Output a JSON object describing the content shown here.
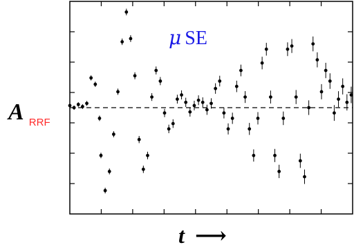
{
  "chart_data": {
    "type": "scatter",
    "title": "",
    "annotation": {
      "symbol": "μ",
      "text": "SE",
      "color": "#1a1ae6"
    },
    "ylabel": {
      "main": "A",
      "subscript": "RRF",
      "subscript_color": "#ff2a2a"
    },
    "xlabel": {
      "main": "t",
      "arrow": "⟶"
    },
    "xlim": [
      0,
      100
    ],
    "ylim": [
      -1,
      1
    ],
    "grid": false,
    "legend": "none",
    "baseline": 0,
    "series": [
      {
        "x": [
          0,
          1.5,
          3,
          4.5,
          6,
          7.5,
          9,
          10.5,
          11,
          12.5,
          14,
          15.5,
          17,
          18.5,
          20,
          21.5,
          23,
          24.5,
          26,
          27.5,
          29,
          30.5,
          32,
          33.5,
          35,
          36.5,
          38,
          39.5,
          41,
          42.5,
          44,
          45.5,
          47,
          48.5,
          50,
          51.5,
          53,
          54.5,
          56,
          57.5,
          59,
          60.5,
          62,
          63.5,
          65,
          66.5,
          68,
          69.5,
          71,
          72.5,
          74,
          75.5,
          77,
          78.5,
          80,
          81.5,
          83,
          84.5,
          86,
          87.5,
          89,
          90.5,
          92,
          93.5,
          95,
          96.5,
          98,
          99.5
        ],
        "y": [
          0.02,
          0.0,
          0.03,
          0.01,
          0.04,
          0.28,
          0.22,
          -0.1,
          -0.45,
          -0.78,
          -0.6,
          -0.25,
          0.15,
          0.62,
          0.9,
          0.65,
          0.3,
          -0.3,
          -0.58,
          -0.45,
          0.1,
          0.35,
          0.25,
          -0.05,
          -0.2,
          -0.15,
          0.08,
          0.12,
          0.05,
          -0.04,
          0.02,
          0.07,
          0.05,
          -0.02,
          0.04,
          0.18,
          0.25,
          -0.05,
          -0.2,
          -0.1,
          0.2,
          0.35,
          0.1,
          -0.2,
          -0.45,
          -0.1,
          0.42,
          0.55,
          0.1,
          -0.45,
          -0.6,
          -0.1,
          0.55,
          0.58,
          0.1,
          -0.5,
          -0.65,
          0.0,
          0.6,
          0.45,
          0.15,
          0.35,
          0.25,
          -0.05,
          0.08,
          0.2,
          0.05,
          0.12
        ]
      }
    ]
  }
}
